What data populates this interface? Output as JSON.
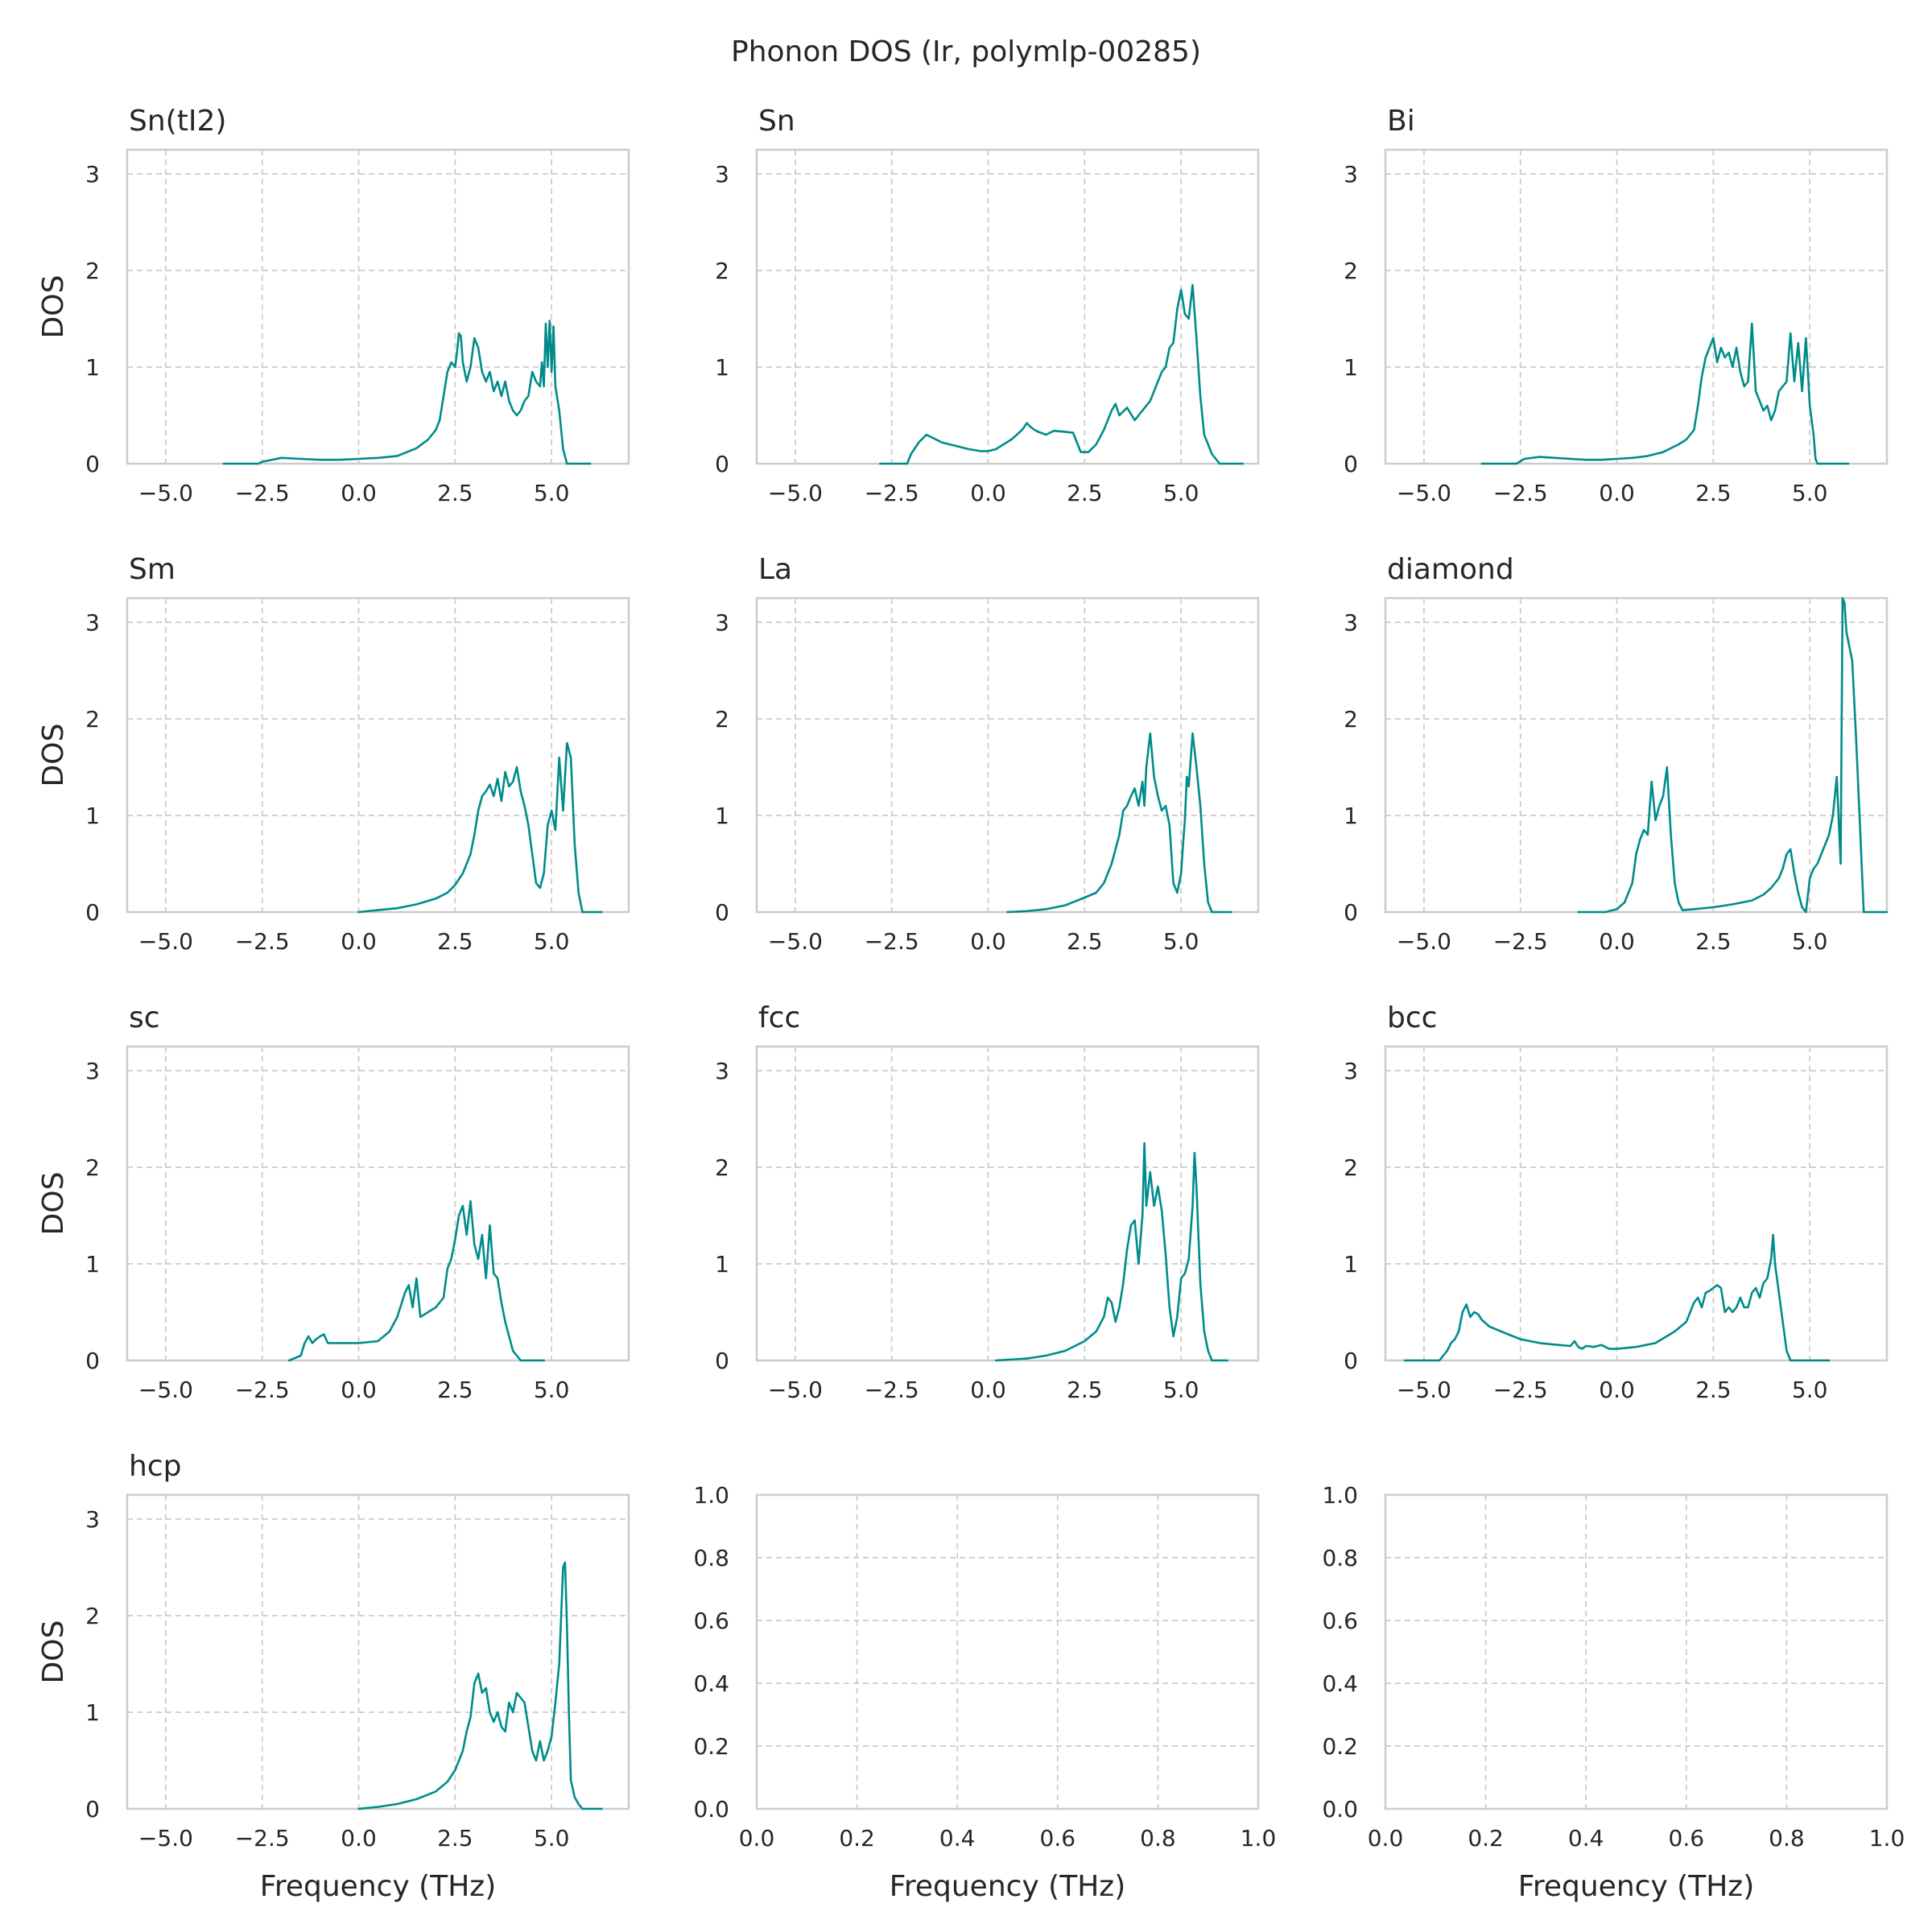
{
  "chart_data": {
    "title": "Phonon DOS (Ir, polymlp-00285)",
    "type": "line",
    "color": "#008b8b",
    "xlabel": "Frequency (THz)",
    "ylabel": "DOS",
    "grid": true,
    "panels": [
      {
        "title": "Sn(tI2)",
        "xlim": [
          -6.0,
          7.0
        ],
        "ylim": [
          0,
          3.25
        ],
        "xticks": [
          "−5.0",
          "−2.5",
          "0.0",
          "2.5",
          "5.0"
        ],
        "yticks": [
          "0",
          "1",
          "2",
          "3"
        ],
        "x": [
          -3.5,
          -2.6,
          -2.5,
          -2.0,
          -1.5,
          -1.0,
          -0.5,
          0.0,
          0.5,
          1.0,
          1.5,
          1.8,
          2.0,
          2.1,
          2.2,
          2.3,
          2.4,
          2.5,
          2.55,
          2.6,
          2.65,
          2.7,
          2.8,
          2.9,
          3.0,
          3.1,
          3.2,
          3.3,
          3.4,
          3.5,
          3.6,
          3.7,
          3.8,
          3.9,
          4.0,
          4.1,
          4.2,
          4.3,
          4.4,
          4.5,
          4.6,
          4.7,
          4.75,
          4.8,
          4.85,
          4.9,
          4.95,
          5.0,
          5.05,
          5.1,
          5.2,
          5.3,
          5.4,
          6.0
        ],
        "y": [
          0,
          0,
          0.02,
          0.06,
          0.05,
          0.04,
          0.04,
          0.05,
          0.06,
          0.08,
          0.16,
          0.25,
          0.35,
          0.45,
          0.7,
          0.95,
          1.05,
          1.0,
          1.15,
          1.35,
          1.32,
          1.05,
          0.85,
          1.0,
          1.3,
          1.2,
          0.95,
          0.85,
          0.95,
          0.75,
          0.85,
          0.7,
          0.85,
          0.65,
          0.55,
          0.5,
          0.55,
          0.65,
          0.7,
          0.95,
          0.85,
          0.8,
          1.05,
          0.8,
          1.45,
          1.0,
          1.48,
          0.95,
          1.42,
          0.8,
          0.55,
          0.15,
          0,
          0
        ]
      },
      {
        "title": "Sn",
        "xlim": [
          -6.0,
          7.0
        ],
        "ylim": [
          0,
          3.25
        ],
        "xticks": [
          "−5.0",
          "−2.5",
          "0.0",
          "2.5",
          "5.0"
        ],
        "yticks": [
          "0",
          "1",
          "2",
          "3"
        ],
        "x": [
          -2.8,
          -2.1,
          -2.0,
          -1.8,
          -1.6,
          -1.4,
          -1.2,
          -1.0,
          -0.8,
          -0.5,
          -0.2,
          0.0,
          0.2,
          0.4,
          0.6,
          0.8,
          0.9,
          1.0,
          1.1,
          1.2,
          1.3,
          1.5,
          1.7,
          2.0,
          2.2,
          2.4,
          2.6,
          2.8,
          3.0,
          3.2,
          3.3,
          3.4,
          3.6,
          3.8,
          3.9,
          4.0,
          4.2,
          4.4,
          4.5,
          4.6,
          4.7,
          4.8,
          4.9,
          5.0,
          5.1,
          5.2,
          5.3,
          5.4,
          5.5,
          5.6,
          5.8,
          6.0,
          6.6
        ],
        "y": [
          0,
          0,
          0.1,
          0.22,
          0.3,
          0.26,
          0.22,
          0.2,
          0.18,
          0.15,
          0.13,
          0.13,
          0.15,
          0.2,
          0.25,
          0.32,
          0.36,
          0.42,
          0.38,
          0.35,
          0.33,
          0.3,
          0.34,
          0.33,
          0.32,
          0.12,
          0.12,
          0.2,
          0.35,
          0.55,
          0.62,
          0.5,
          0.58,
          0.45,
          0.5,
          0.55,
          0.65,
          0.85,
          0.95,
          1.0,
          1.2,
          1.25,
          1.6,
          1.8,
          1.55,
          1.5,
          1.85,
          1.3,
          0.7,
          0.3,
          0.1,
          0,
          0
        ]
      },
      {
        "title": "Bi",
        "xlim": [
          -6.0,
          7.0
        ],
        "ylim": [
          0,
          3.25
        ],
        "xticks": [
          "−5.0",
          "−2.5",
          "0.0",
          "2.5",
          "5.0"
        ],
        "yticks": [
          "0",
          "1",
          "2",
          "3"
        ],
        "x": [
          -3.5,
          -2.6,
          -2.4,
          -2.0,
          -1.6,
          -1.2,
          -0.8,
          -0.4,
          0.0,
          0.4,
          0.8,
          1.2,
          1.6,
          1.8,
          2.0,
          2.1,
          2.2,
          2.3,
          2.4,
          2.5,
          2.6,
          2.7,
          2.8,
          2.9,
          3.0,
          3.1,
          3.2,
          3.3,
          3.4,
          3.5,
          3.6,
          3.7,
          3.8,
          3.9,
          4.0,
          4.1,
          4.2,
          4.3,
          4.4,
          4.5,
          4.6,
          4.7,
          4.8,
          4.9,
          5.0,
          5.1,
          5.15,
          5.2,
          6.0
        ],
        "y": [
          0,
          0,
          0.05,
          0.07,
          0.06,
          0.05,
          0.04,
          0.04,
          0.05,
          0.06,
          0.08,
          0.12,
          0.2,
          0.25,
          0.35,
          0.6,
          0.9,
          1.1,
          1.2,
          1.3,
          1.05,
          1.2,
          1.1,
          1.15,
          1.0,
          1.2,
          0.95,
          0.8,
          0.85,
          1.45,
          0.75,
          0.65,
          0.55,
          0.6,
          0.45,
          0.55,
          0.75,
          0.8,
          0.85,
          1.35,
          0.85,
          1.25,
          0.75,
          1.3,
          0.6,
          0.3,
          0.05,
          0,
          0
        ]
      },
      {
        "title": "Sm",
        "xlim": [
          -6.0,
          7.0
        ],
        "ylim": [
          0,
          3.25
        ],
        "xticks": [
          "−5.0",
          "−2.5",
          "0.0",
          "2.5",
          "5.0"
        ],
        "yticks": [
          "0",
          "1",
          "2",
          "3"
        ],
        "x": [
          0.0,
          0.5,
          1.0,
          1.5,
          2.0,
          2.3,
          2.5,
          2.7,
          2.9,
          3.0,
          3.1,
          3.2,
          3.3,
          3.4,
          3.5,
          3.6,
          3.7,
          3.8,
          3.9,
          4.0,
          4.1,
          4.2,
          4.3,
          4.4,
          4.5,
          4.6,
          4.7,
          4.8,
          4.9,
          5.0,
          5.1,
          5.2,
          5.3,
          5.4,
          5.5,
          5.6,
          5.7,
          5.8,
          6.0,
          6.3
        ],
        "y": [
          0,
          0.02,
          0.04,
          0.08,
          0.14,
          0.2,
          0.28,
          0.4,
          0.6,
          0.8,
          1.05,
          1.2,
          1.25,
          1.32,
          1.2,
          1.38,
          1.15,
          1.45,
          1.3,
          1.35,
          1.5,
          1.25,
          1.1,
          0.9,
          0.6,
          0.3,
          0.25,
          0.4,
          0.9,
          1.05,
          0.85,
          1.6,
          1.05,
          1.75,
          1.6,
          0.7,
          0.2,
          0,
          0,
          0
        ]
      },
      {
        "title": "La",
        "xlim": [
          -6.0,
          7.0
        ],
        "ylim": [
          0,
          3.25
        ],
        "xticks": [
          "−5.0",
          "−2.5",
          "0.0",
          "2.5",
          "5.0"
        ],
        "yticks": [
          "0",
          "1",
          "2",
          "3"
        ],
        "x": [
          0.5,
          1.0,
          1.5,
          2.0,
          2.5,
          2.8,
          3.0,
          3.2,
          3.4,
          3.5,
          3.6,
          3.7,
          3.8,
          3.9,
          4.0,
          4.05,
          4.1,
          4.2,
          4.3,
          4.4,
          4.5,
          4.6,
          4.7,
          4.8,
          4.9,
          5.0,
          5.05,
          5.1,
          5.15,
          5.2,
          5.3,
          5.4,
          5.5,
          5.6,
          5.7,
          5.8,
          6.0,
          6.3
        ],
        "y": [
          0,
          0.01,
          0.03,
          0.07,
          0.15,
          0.2,
          0.3,
          0.5,
          0.8,
          1.05,
          1.1,
          1.2,
          1.28,
          1.1,
          1.35,
          1.1,
          1.5,
          1.85,
          1.4,
          1.2,
          1.05,
          1.1,
          0.9,
          0.3,
          0.2,
          0.4,
          0.7,
          0.95,
          1.4,
          1.3,
          1.85,
          1.5,
          1.1,
          0.5,
          0.1,
          0,
          0,
          0
        ]
      },
      {
        "title": "diamond",
        "xlim": [
          -6.0,
          7.0
        ],
        "ylim": [
          0,
          3.25
        ],
        "xticks": [
          "−5.0",
          "−2.5",
          "0.0",
          "2.5",
          "5.0"
        ],
        "yticks": [
          "0",
          "1",
          "2",
          "3"
        ],
        "x": [
          -1.0,
          -0.3,
          0.0,
          0.2,
          0.4,
          0.5,
          0.6,
          0.7,
          0.8,
          0.9,
          1.0,
          1.1,
          1.2,
          1.3,
          1.4,
          1.5,
          1.6,
          1.7,
          2.0,
          2.5,
          3.0,
          3.5,
          3.8,
          4.0,
          4.2,
          4.3,
          4.4,
          4.5,
          4.6,
          4.7,
          4.8,
          4.9,
          5.0,
          5.1,
          5.2,
          5.3,
          5.4,
          5.5,
          5.6,
          5.7,
          5.8,
          5.85,
          5.9,
          5.95,
          6.0,
          6.1,
          6.2,
          6.3,
          6.4,
          6.6,
          7.0
        ],
        "y": [
          0,
          0,
          0.03,
          0.1,
          0.3,
          0.6,
          0.75,
          0.85,
          0.8,
          1.35,
          0.95,
          1.1,
          1.2,
          1.5,
          0.8,
          0.3,
          0.1,
          0.02,
          0.03,
          0.05,
          0.08,
          0.12,
          0.18,
          0.25,
          0.35,
          0.45,
          0.6,
          0.65,
          0.4,
          0.2,
          0.05,
          0,
          0.35,
          0.45,
          0.5,
          0.6,
          0.7,
          0.8,
          1.0,
          1.4,
          0.5,
          3.25,
          3.2,
          2.9,
          2.8,
          2.6,
          1.8,
          0.9,
          0,
          0,
          0
        ]
      },
      {
        "title": "sc",
        "xlim": [
          -6.0,
          7.0
        ],
        "ylim": [
          0,
          3.25
        ],
        "xticks": [
          "−5.0",
          "−2.5",
          "0.0",
          "2.5",
          "5.0"
        ],
        "yticks": [
          "0",
          "1",
          "2",
          "3"
        ],
        "x": [
          -1.8,
          -1.5,
          -1.4,
          -1.3,
          -1.2,
          -1.1,
          -1.0,
          -0.9,
          -0.8,
          -0.5,
          0.0,
          0.5,
          0.8,
          1.0,
          1.2,
          1.3,
          1.4,
          1.5,
          1.6,
          2.0,
          2.2,
          2.3,
          2.4,
          2.5,
          2.6,
          2.7,
          2.8,
          2.9,
          3.0,
          3.1,
          3.2,
          3.3,
          3.4,
          3.5,
          3.6,
          3.7,
          3.8,
          4.0,
          4.2,
          4.8
        ],
        "y": [
          0,
          0.05,
          0.18,
          0.25,
          0.18,
          0.22,
          0.25,
          0.27,
          0.18,
          0.18,
          0.18,
          0.2,
          0.3,
          0.45,
          0.7,
          0.78,
          0.55,
          0.85,
          0.45,
          0.55,
          0.65,
          0.95,
          1.05,
          1.25,
          1.5,
          1.6,
          1.3,
          1.65,
          1.2,
          1.05,
          1.3,
          0.85,
          1.4,
          0.9,
          0.85,
          0.6,
          0.4,
          0.1,
          0,
          0
        ]
      },
      {
        "title": "fcc",
        "xlim": [
          -6.0,
          7.0
        ],
        "ylim": [
          0,
          3.25
        ],
        "xticks": [
          "−5.0",
          "−2.5",
          "0.0",
          "2.5",
          "5.0"
        ],
        "yticks": [
          "0",
          "1",
          "2",
          "3"
        ],
        "x": [
          0.2,
          1.0,
          1.5,
          2.0,
          2.5,
          2.8,
          3.0,
          3.1,
          3.2,
          3.3,
          3.4,
          3.5,
          3.6,
          3.7,
          3.8,
          3.9,
          4.0,
          4.05,
          4.1,
          4.2,
          4.3,
          4.4,
          4.5,
          4.6,
          4.7,
          4.8,
          4.9,
          5.0,
          5.1,
          5.2,
          5.3,
          5.35,
          5.4,
          5.5,
          5.6,
          5.7,
          5.8,
          6.2
        ],
        "y": [
          0,
          0.02,
          0.05,
          0.1,
          0.2,
          0.3,
          0.45,
          0.65,
          0.6,
          0.4,
          0.55,
          0.8,
          1.15,
          1.4,
          1.45,
          1.0,
          1.5,
          2.25,
          1.6,
          1.95,
          1.6,
          1.8,
          1.55,
          1.1,
          0.55,
          0.25,
          0.45,
          0.85,
          0.9,
          1.05,
          1.6,
          2.15,
          1.8,
          0.8,
          0.3,
          0.1,
          0,
          0
        ]
      },
      {
        "title": "bcc",
        "xlim": [
          -6.0,
          7.0
        ],
        "ylim": [
          0,
          3.25
        ],
        "xticks": [
          "−5.0",
          "−2.5",
          "0.0",
          "2.5",
          "5.0"
        ],
        "yticks": [
          "0",
          "1",
          "2",
          "3"
        ],
        "x": [
          -5.5,
          -4.6,
          -4.5,
          -4.4,
          -4.3,
          -4.2,
          -4.1,
          -4.0,
          -3.9,
          -3.8,
          -3.7,
          -3.6,
          -3.5,
          -3.3,
          -3.0,
          -2.5,
          -2.0,
          -1.5,
          -1.2,
          -1.1,
          -1.0,
          -0.9,
          -0.8,
          -0.6,
          -0.4,
          -0.2,
          0.0,
          0.5,
          1.0,
          1.5,
          1.8,
          2.0,
          2.1,
          2.2,
          2.3,
          2.4,
          2.5,
          2.6,
          2.7,
          2.8,
          2.9,
          3.0,
          3.1,
          3.2,
          3.3,
          3.4,
          3.5,
          3.6,
          3.7,
          3.8,
          3.9,
          4.0,
          4.05,
          4.1,
          4.2,
          4.3,
          4.4,
          4.5,
          5.5
        ],
        "y": [
          0,
          0,
          0.05,
          0.1,
          0.18,
          0.22,
          0.3,
          0.5,
          0.58,
          0.45,
          0.5,
          0.48,
          0.42,
          0.35,
          0.3,
          0.22,
          0.18,
          0.16,
          0.15,
          0.2,
          0.14,
          0.12,
          0.15,
          0.14,
          0.16,
          0.12,
          0.12,
          0.14,
          0.18,
          0.3,
          0.4,
          0.6,
          0.65,
          0.55,
          0.7,
          0.72,
          0.75,
          0.78,
          0.75,
          0.5,
          0.55,
          0.5,
          0.55,
          0.65,
          0.55,
          0.55,
          0.7,
          0.75,
          0.65,
          0.8,
          0.85,
          1.05,
          1.3,
          1.0,
          0.7,
          0.4,
          0.1,
          0,
          0
        ]
      },
      {
        "title": "hcp",
        "xlim": [
          -6.0,
          7.0
        ],
        "ylim": [
          0,
          3.25
        ],
        "xticks": [
          "−5.0",
          "−2.5",
          "0.0",
          "2.5",
          "5.0"
        ],
        "yticks": [
          "0",
          "1",
          "2",
          "3"
        ],
        "x": [
          0.0,
          0.5,
          1.0,
          1.5,
          2.0,
          2.3,
          2.5,
          2.7,
          2.8,
          2.9,
          3.0,
          3.1,
          3.2,
          3.3,
          3.4,
          3.5,
          3.6,
          3.7,
          3.8,
          3.9,
          4.0,
          4.1,
          4.2,
          4.3,
          4.4,
          4.5,
          4.6,
          4.7,
          4.8,
          4.9,
          5.0,
          5.1,
          5.2,
          5.3,
          5.35,
          5.4,
          5.45,
          5.5,
          5.6,
          5.7,
          5.8,
          6.0,
          6.3
        ],
        "y": [
          0,
          0.02,
          0.05,
          0.1,
          0.18,
          0.28,
          0.4,
          0.6,
          0.8,
          0.95,
          1.3,
          1.4,
          1.2,
          1.25,
          1.0,
          0.9,
          1.0,
          0.85,
          0.8,
          1.1,
          1.0,
          1.2,
          1.15,
          1.1,
          0.85,
          0.6,
          0.5,
          0.7,
          0.5,
          0.6,
          0.75,
          1.1,
          1.5,
          2.5,
          2.55,
          1.9,
          1.0,
          0.3,
          0.12,
          0.05,
          0,
          0,
          0
        ]
      },
      {
        "title": "",
        "empty": true,
        "xlim": [
          0,
          1
        ],
        "ylim": [
          0,
          1
        ],
        "xticks": [
          "0.0",
          "0.2",
          "0.4",
          "0.6",
          "0.8",
          "1.0"
        ],
        "yticks": [
          "0.0",
          "0.2",
          "0.4",
          "0.6",
          "0.8",
          "1.0"
        ],
        "x": [],
        "y": []
      },
      {
        "title": "",
        "empty": true,
        "xlim": [
          0,
          1
        ],
        "ylim": [
          0,
          1
        ],
        "xticks": [
          "0.0",
          "0.2",
          "0.4",
          "0.6",
          "0.8",
          "1.0"
        ],
        "yticks": [
          "0.0",
          "0.2",
          "0.4",
          "0.6",
          "0.8",
          "1.0"
        ],
        "x": [],
        "y": []
      }
    ]
  }
}
